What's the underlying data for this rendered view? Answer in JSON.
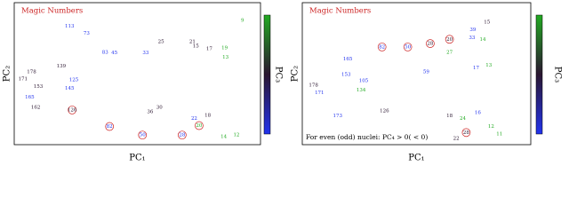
{
  "chart_data": [
    {
      "type": "scatter",
      "title": "Magic Numbers",
      "title_color": "#cc2222",
      "xlabel": "PC₁",
      "ylabel": "PC₂",
      "colorbar_label": "PC₃",
      "colorbar_colors": [
        "#22aa22",
        "#2a1630",
        "#2233ee"
      ],
      "xlim": [
        0,
        100
      ],
      "ylim": [
        0,
        100
      ],
      "labels": [
        "9",
        "19",
        "13",
        "17",
        "15",
        "21",
        "25",
        "33",
        "45",
        "83",
        "73",
        "113",
        "139",
        "125",
        "178",
        "171",
        "153",
        "165",
        "162",
        "145",
        "126",
        "82",
        "50",
        "28",
        "20",
        "36",
        "30",
        "22",
        "18",
        "14",
        "12"
      ],
      "x": [
        95.3,
        87.6,
        88,
        81,
        75.2,
        73.7,
        60.2,
        53.6,
        40.1,
        36.1,
        28.1,
        20.8,
        17.2,
        22.6,
        4.4,
        0.7,
        7.3,
        3.6,
        6.2,
        20.8,
        21.9,
        38,
        52.2,
        69.3,
        76.6,
        55.5,
        59.5,
        74.5,
        80.3,
        87.2,
        92.7
      ],
      "y": [
        95.9,
        74,
        66.4,
        73.3,
        75.3,
        78.8,
        78.8,
        69.9,
        69.9,
        70.5,
        85.6,
        91.1,
        59.6,
        48.6,
        54.8,
        49.3,
        43.2,
        34.9,
        26.7,
        41.8,
        24.7,
        11.6,
        4.8,
        4.8,
        12.3,
        23.3,
        26.7,
        17.8,
        20.5,
        3.4,
        4.8
      ],
      "colors": [
        "#22aa22",
        "#22aa22",
        "#22aa22",
        "#2a1630",
        "#2a1630",
        "#2a1630",
        "#2a1630",
        "#2233ee",
        "#2233ee",
        "#2233ee",
        "#2233ee",
        "#2233ee",
        "#2a1630",
        "#2233ee",
        "#2a1630",
        "#2a1630",
        "#2a1630",
        "#2233ee",
        "#2a1630",
        "#2233ee",
        "#2a1630",
        "#2233ee",
        "#2233ee",
        "#2233ee",
        "#22aa22",
        "#2a1630",
        "#2a1630",
        "#2233ee",
        "#2a1630",
        "#22aa22",
        "#22aa22"
      ],
      "circled": [
        false,
        false,
        false,
        false,
        false,
        false,
        false,
        false,
        false,
        false,
        false,
        false,
        false,
        false,
        false,
        false,
        false,
        false,
        false,
        false,
        true,
        true,
        true,
        true,
        true,
        false,
        false,
        false,
        false,
        false,
        false
      ],
      "circle_color": "#cc2222"
    },
    {
      "type": "scatter",
      "title": "Magic Numbers",
      "title_color": "#cc2222",
      "xlabel": "PC₁",
      "ylabel": "PC₂",
      "colorbar_label": "PC₃",
      "colorbar_colors": [
        "#22aa22",
        "#2a1630",
        "#2233ee"
      ],
      "note": "For even (odd) nuclei: PC₄ > 0( < 0)",
      "xlim": [
        0,
        100
      ],
      "ylim": [
        0,
        100
      ],
      "labels": [
        "15",
        "39",
        "33",
        "14",
        "20",
        "27",
        "28",
        "50",
        "82",
        "17",
        "13",
        "165",
        "153",
        "178",
        "171",
        "173",
        "134",
        "126",
        "105",
        "59",
        "18",
        "16",
        "24",
        "12",
        "11",
        "28",
        "22"
      ],
      "x": [
        82.9,
        76.3,
        75.9,
        80.9,
        65.4,
        65.4,
        56.4,
        45.9,
        33.9,
        77.8,
        83.7,
        17.9,
        17.1,
        1.9,
        4.7,
        13.2,
        24.1,
        35,
        25.3,
        54.5,
        65.4,
        78.6,
        71.6,
        84.8,
        88.7,
        73.2,
        68.5
      ],
      "y": [
        94.5,
        88.4,
        82.2,
        80.8,
        80.8,
        70.5,
        77.4,
        74.7,
        74.7,
        58.2,
        60.3,
        65.1,
        52.7,
        44.5,
        38.4,
        19.9,
        40.4,
        24,
        47.9,
        54.8,
        19.9,
        22.6,
        17.8,
        11.6,
        5.5,
        6.8,
        2.1
      ],
      "colors": [
        "#2a1630",
        "#2233ee",
        "#2233ee",
        "#22aa22",
        "#2a1630",
        "#22aa22",
        "#2a1630",
        "#2233ee",
        "#2233ee",
        "#2233ee",
        "#22aa22",
        "#2233ee",
        "#2233ee",
        "#2a1630",
        "#2233ee",
        "#2233ee",
        "#22aa22",
        "#2a1630",
        "#2233ee",
        "#2233ee",
        "#2a1630",
        "#2233ee",
        "#22aa22",
        "#22aa22",
        "#22aa22",
        "#2a1630",
        "#2a1630"
      ],
      "circled": [
        false,
        false,
        false,
        false,
        true,
        false,
        true,
        true,
        true,
        false,
        false,
        false,
        false,
        false,
        false,
        false,
        false,
        false,
        false,
        false,
        false,
        false,
        false,
        false,
        false,
        true,
        false
      ],
      "circle_color": "#cc2222"
    }
  ]
}
